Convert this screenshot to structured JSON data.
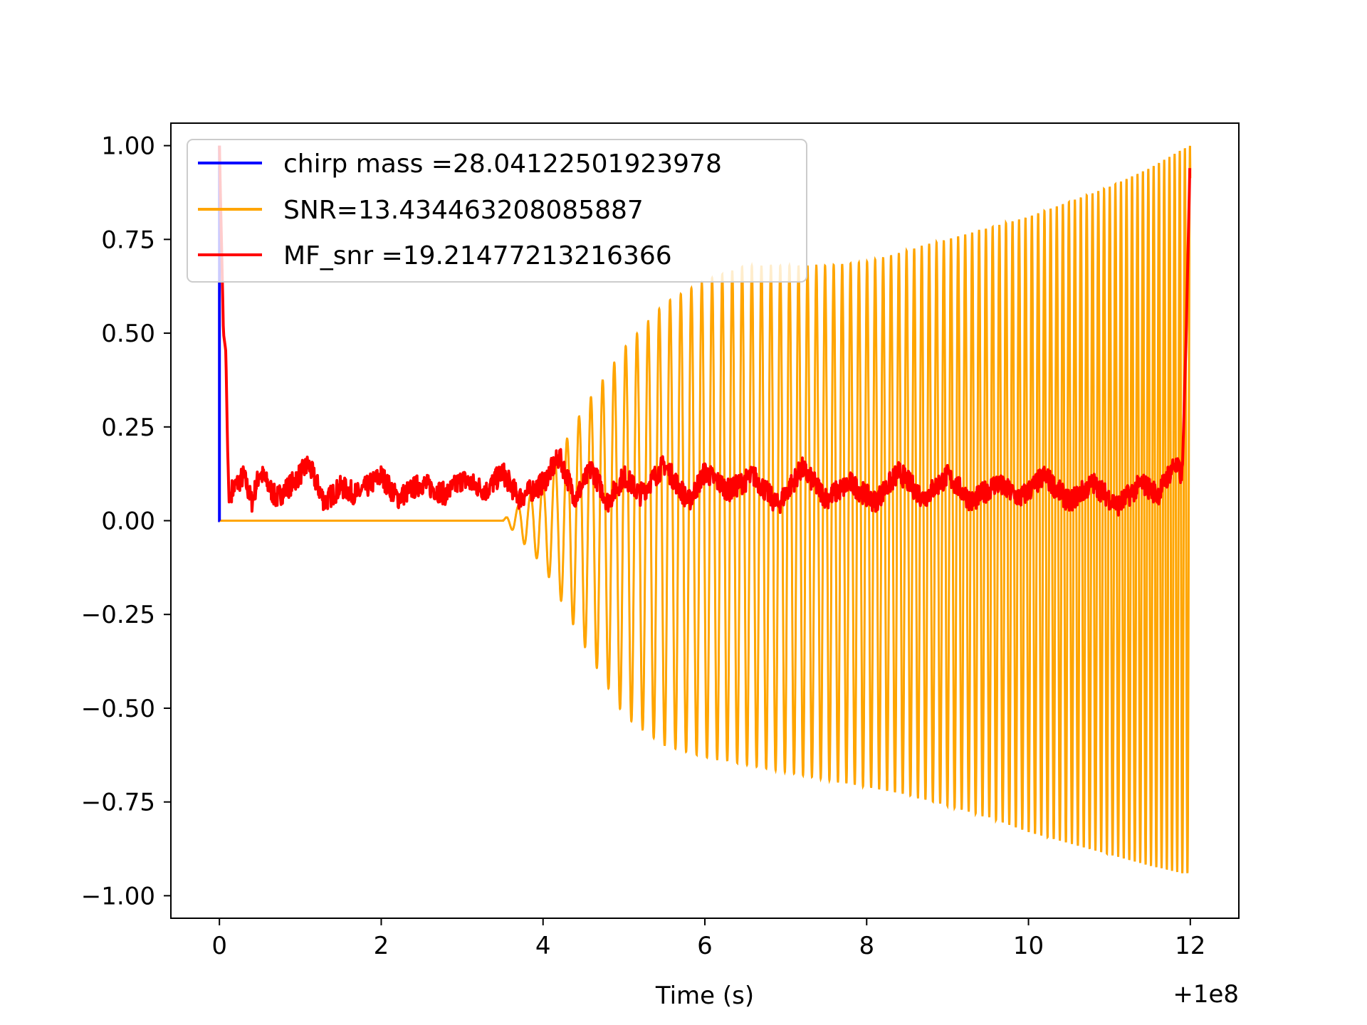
{
  "chart_data": {
    "type": "line",
    "title": "",
    "xlabel": "Time (s)",
    "ylabel": "",
    "x_offset_label": "+1e8",
    "xlim": [
      -0.6,
      12.6
    ],
    "ylim": [
      -1.06,
      1.06
    ],
    "x_ticks": [
      0,
      2,
      4,
      6,
      8,
      10,
      12
    ],
    "x_tick_labels": [
      "0",
      "2",
      "4",
      "6",
      "8",
      "10",
      "12"
    ],
    "y_ticks": [
      1.0,
      0.75,
      0.5,
      0.25,
      0.0,
      -0.25,
      -0.5,
      -0.75,
      -1.0
    ],
    "y_tick_labels": [
      "1.00",
      "0.75",
      "0.50",
      "0.25",
      "0.00",
      "−0.25",
      "−0.50",
      "−0.75",
      "−1.00"
    ],
    "legend_position": "top-left",
    "grid": false,
    "series": [
      {
        "name": "chirp mass =28.04122501923978",
        "color": "#0000ff",
        "x": [
          0,
          0,
          0,
          0.005
        ],
        "y": [
          0,
          1.0,
          0.0,
          0.0
        ]
      },
      {
        "name": "SNR=13.434463208085887",
        "color": "#ffa500",
        "description_free": true,
        "x": [
          0,
          3.5,
          3.6,
          4.0,
          4.5,
          5.0,
          5.5,
          6.0,
          6.5,
          7.0,
          7.5,
          8.0,
          8.5,
          9.0,
          9.5,
          10.0,
          10.5,
          11.0,
          11.5,
          11.9,
          12.0
        ],
        "upper": [
          0,
          0,
          0.02,
          0.1,
          0.3,
          0.46,
          0.58,
          0.64,
          0.68,
          0.68,
          0.68,
          0.69,
          0.72,
          0.75,
          0.78,
          0.81,
          0.85,
          0.89,
          0.94,
          0.99,
          1.0
        ],
        "lower": [
          0,
          0,
          -0.02,
          -0.12,
          -0.33,
          -0.52,
          -0.6,
          -0.63,
          -0.65,
          -0.67,
          -0.69,
          -0.71,
          -0.73,
          -0.76,
          -0.79,
          -0.83,
          -0.86,
          -0.89,
          -0.92,
          -0.94,
          -0.94
        ]
      },
      {
        "name": "MF_snr =19.21477213216366",
        "color": "#ff0000",
        "x": [
          0,
          0.05,
          0.08,
          0.1,
          0.12,
          0.15,
          0.3,
          0.4,
          0.5,
          0.7,
          0.9,
          1.1,
          1.3,
          1.5,
          1.7,
          2.0,
          2.2,
          2.5,
          2.8,
          3.0,
          3.3,
          3.5,
          3.7,
          4.0,
          4.2,
          4.4,
          4.6,
          4.8,
          5.0,
          5.2,
          5.5,
          5.8,
          6.0,
          6.3,
          6.6,
          6.9,
          7.2,
          7.5,
          7.8,
          8.1,
          8.4,
          8.7,
          9.0,
          9.3,
          9.6,
          9.9,
          10.2,
          10.5,
          10.8,
          11.1,
          11.4,
          11.6,
          11.8,
          11.9,
          11.95,
          12.0
        ],
        "y": [
          1.0,
          0.5,
          0.45,
          0.2,
          0.05,
          0.08,
          0.12,
          0.05,
          0.13,
          0.06,
          0.1,
          0.15,
          0.05,
          0.09,
          0.07,
          0.12,
          0.06,
          0.1,
          0.07,
          0.11,
          0.08,
          0.13,
          0.06,
          0.1,
          0.17,
          0.06,
          0.14,
          0.05,
          0.12,
          0.07,
          0.15,
          0.05,
          0.13,
          0.08,
          0.12,
          0.04,
          0.14,
          0.06,
          0.1,
          0.05,
          0.13,
          0.06,
          0.12,
          0.05,
          0.1,
          0.06,
          0.12,
          0.05,
          0.1,
          0.04,
          0.1,
          0.07,
          0.15,
          0.12,
          0.5,
          1.0
        ]
      }
    ]
  }
}
